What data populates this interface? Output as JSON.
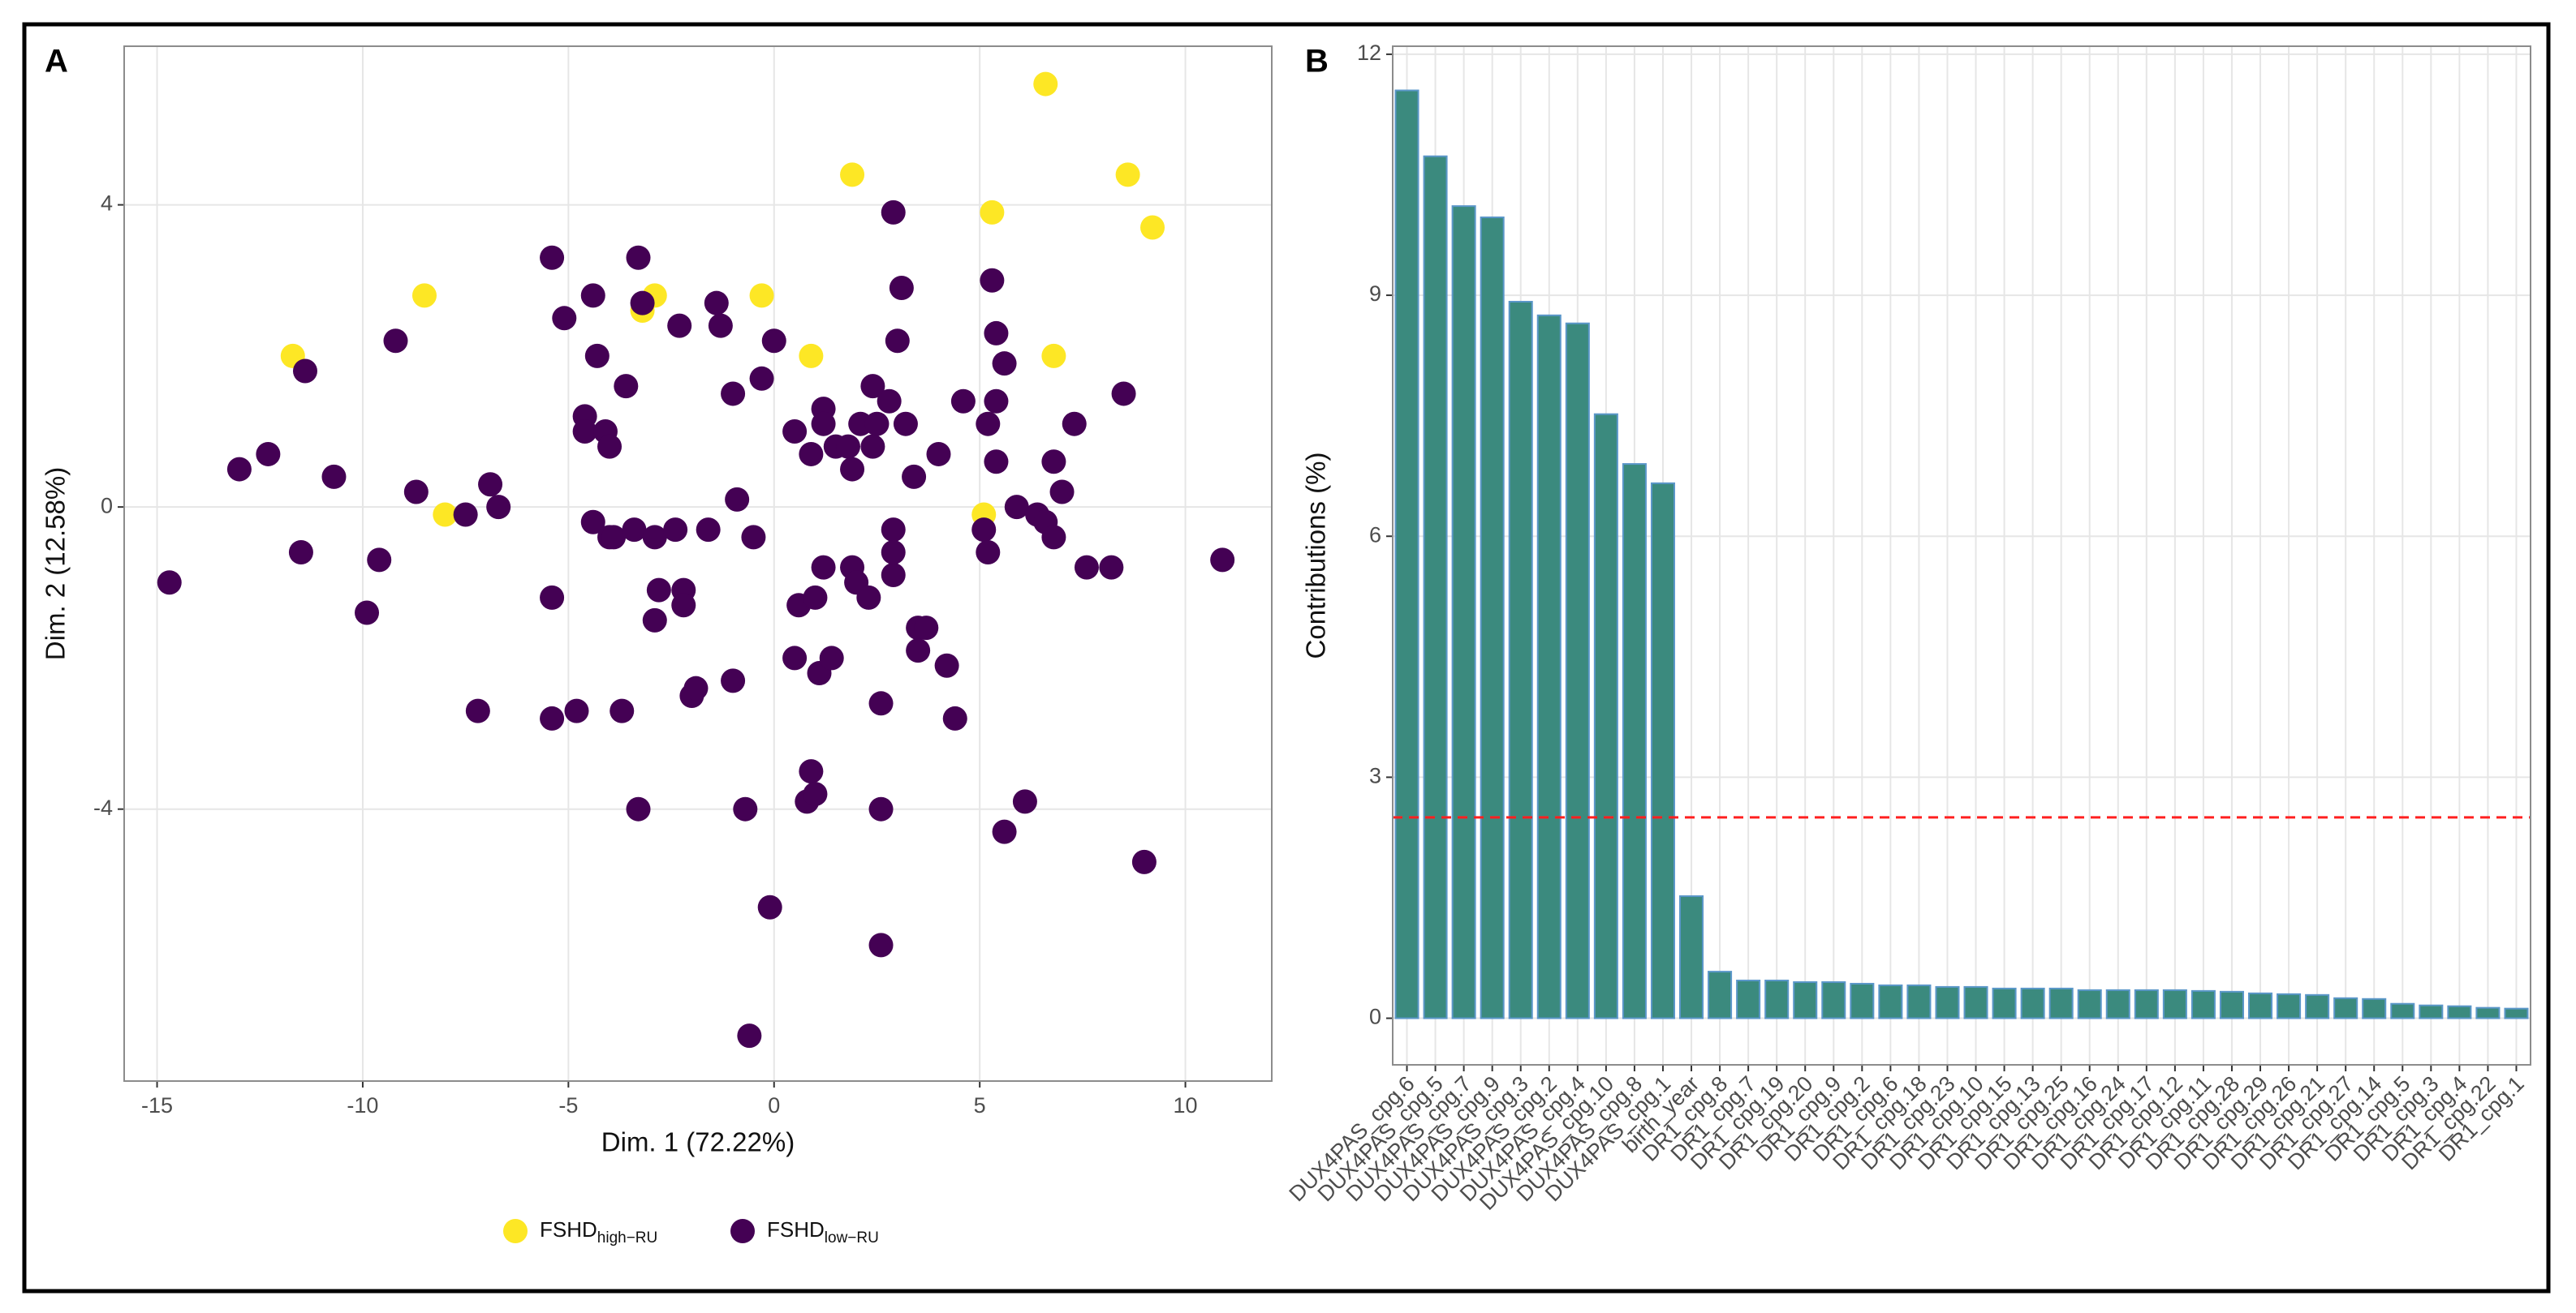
{
  "chart_data": [
    {
      "type": "scatter",
      "panel_label": "A",
      "xlabel": "Dim. 1 (72.22%)",
      "ylabel": "Dim. 2 (12.58%)",
      "xlim": [
        -15.8,
        12.1
      ],
      "ylim": [
        -7.6,
        6.1
      ],
      "xticks": [
        -15,
        -10,
        -5,
        0,
        5,
        10
      ],
      "yticks": [
        -4,
        0,
        4
      ],
      "grid": true,
      "legend": "bottom",
      "series": [
        {
          "name": "FSHD",
          "name_sub": "high−RU",
          "color": "#fde725",
          "x": [
            -11.7,
            -8.5,
            -8.0,
            -3.2,
            -2.9,
            -0.3,
            0.9,
            1.9,
            5.1,
            5.3,
            6.6,
            6.8,
            8.6,
            9.2
          ],
          "y": [
            2.0,
            2.8,
            -0.1,
            2.6,
            2.8,
            2.8,
            2.0,
            4.4,
            -0.1,
            3.9,
            5.6,
            2.0,
            4.4,
            3.7
          ]
        },
        {
          "name": "FSHD",
          "name_sub": "low−RU",
          "color": "#440154",
          "x": [
            -14.7,
            -13.0,
            -12.3,
            -11.5,
            -11.4,
            -10.7,
            -9.9,
            -9.6,
            -9.2,
            -8.7,
            -7.5,
            -7.2,
            -6.9,
            -6.7,
            -5.4,
            -5.4,
            -5.4,
            -5.1,
            -4.8,
            -4.6,
            -4.6,
            -4.4,
            -4.4,
            -4.3,
            -4.1,
            -4.0,
            -4.0,
            -3.9,
            -3.7,
            -3.6,
            -3.3,
            -3.4,
            -3.3,
            -3.2,
            -2.9,
            -2.9,
            -2.8,
            -2.4,
            -2.3,
            -2.2,
            -2.2,
            -2.0,
            -1.9,
            -1.6,
            -1.4,
            -1.3,
            -1.0,
            -1.0,
            -0.9,
            -0.7,
            -0.6,
            -0.5,
            -0.3,
            -0.1,
            0.0,
            0.5,
            0.5,
            0.6,
            0.8,
            0.9,
            0.9,
            1.0,
            1.0,
            1.1,
            1.2,
            1.2,
            1.2,
            1.4,
            1.5,
            1.8,
            1.9,
            1.9,
            2.0,
            2.1,
            2.3,
            2.4,
            2.4,
            2.5,
            2.6,
            2.6,
            2.6,
            2.8,
            2.9,
            2.9,
            2.9,
            2.9,
            3.0,
            3.1,
            3.2,
            3.4,
            3.5,
            3.5,
            3.7,
            4.0,
            4.2,
            4.4,
            4.6,
            5.1,
            5.2,
            5.2,
            5.3,
            5.4,
            5.4,
            5.4,
            5.6,
            5.6,
            5.9,
            6.1,
            6.4,
            6.6,
            6.8,
            6.8,
            7.0,
            7.3,
            7.6,
            8.2,
            8.5,
            9.0,
            10.9
          ],
          "y": [
            -1.0,
            0.5,
            0.7,
            -0.6,
            1.8,
            0.4,
            -1.4,
            -0.7,
            2.2,
            0.2,
            -0.1,
            -2.7,
            0.3,
            0.0,
            3.3,
            -1.2,
            -2.8,
            2.5,
            -2.7,
            1.2,
            1.0,
            -0.2,
            2.8,
            2.0,
            1.0,
            0.8,
            -0.4,
            -0.4,
            -2.7,
            1.6,
            3.3,
            -0.3,
            -4.0,
            2.7,
            -0.4,
            -1.5,
            -1.1,
            -0.3,
            2.4,
            -1.1,
            -1.3,
            -2.5,
            -2.4,
            -0.3,
            2.7,
            2.4,
            1.5,
            -2.3,
            0.1,
            -4.0,
            -7.0,
            -0.4,
            1.7,
            -5.3,
            2.2,
            1.0,
            -2.0,
            -1.3,
            -3.9,
            -3.5,
            0.7,
            -1.2,
            -3.8,
            -2.2,
            -0.8,
            1.3,
            1.1,
            -2.0,
            0.8,
            0.8,
            -0.8,
            0.5,
            -1.0,
            1.1,
            -1.2,
            1.6,
            0.8,
            1.1,
            -2.6,
            -5.8,
            -4.0,
            1.4,
            3.9,
            -0.3,
            -0.9,
            -0.6,
            2.2,
            2.9,
            1.1,
            0.4,
            -1.6,
            -1.9,
            -1.6,
            0.7,
            -2.1,
            -2.8,
            1.4,
            -0.3,
            1.1,
            -0.6,
            3.0,
            0.6,
            1.4,
            2.3,
            1.9,
            -4.3,
            0.0,
            -3.9,
            -0.1,
            -0.2,
            -0.4,
            0.6,
            0.2,
            1.1,
            -0.8,
            -0.8,
            1.5,
            -4.7,
            -0.7
          ]
        }
      ]
    },
    {
      "type": "bar",
      "panel_label": "B",
      "ylabel": "Contributions (%)",
      "ylim": [
        -0.58,
        12.1
      ],
      "yticks": [
        0,
        3,
        6,
        9,
        12
      ],
      "grid": true,
      "color": "#3b8a7e",
      "edgecolor": "#5b97c9",
      "hline": {
        "value": 2.5,
        "color": "#ff2020"
      },
      "categories": [
        "DUX4PAS_cpg.6",
        "DUX4PAS_cpg.5",
        "DUX4PAS_cpg.7",
        "DUX4PAS_cpg.9",
        "DUX4PAS_cpg.3",
        "DUX4PAS_cpg.2",
        "DUX4PAS_cpg.4",
        "DUX4PAS_cpg.10",
        "DUX4PAS_cpg.8",
        "DUX4PAS_cpg.1",
        "birth_year",
        "DR1_cpg.8",
        "DR1_cpg.7",
        "DR1_cpg.19",
        "DR1_cpg.20",
        "DR1_cpg.9",
        "DR1_cpg.2",
        "DR1_cpg.6",
        "DR1_cpg.18",
        "DR1_cpg.23",
        "DR1_cpg.10",
        "DR1_cpg.15",
        "DR1_cpg.13",
        "DR1_cpg.25",
        "DR1_cpg.16",
        "DR1_cpg.24",
        "DR1_cpg.17",
        "DR1_cpg.12",
        "DR1_cpg.11",
        "DR1_cpg.28",
        "DR1_cpg.29",
        "DR1_cpg.26",
        "DR1_cpg.21",
        "DR1_cpg.27",
        "DR1_cpg.14",
        "DR1_cpg.5",
        "DR1_cpg.3",
        "DR1_cpg.4",
        "DR1_cpg.22",
        "DR1_cpg.1"
      ],
      "values": [
        11.55,
        10.73,
        10.11,
        9.97,
        8.92,
        8.75,
        8.65,
        7.52,
        6.9,
        6.66,
        1.52,
        0.58,
        0.47,
        0.47,
        0.45,
        0.45,
        0.43,
        0.41,
        0.41,
        0.39,
        0.39,
        0.37,
        0.37,
        0.37,
        0.35,
        0.35,
        0.35,
        0.35,
        0.34,
        0.33,
        0.31,
        0.3,
        0.29,
        0.25,
        0.24,
        0.18,
        0.16,
        0.15,
        0.13,
        0.12
      ]
    }
  ]
}
